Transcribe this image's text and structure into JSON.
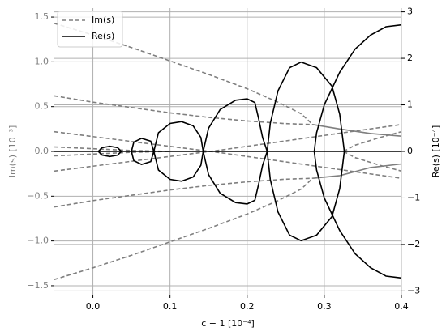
{
  "chart_data": {
    "type": "line",
    "xlabel": "c − 1  [10⁻⁴]",
    "ylabel": "Im(s)  [10⁻³]",
    "y2label": "Re(s)  [10⁻⁴]",
    "xlim": [
      -0.05,
      0.4
    ],
    "xticks": [
      {
        "value": 0,
        "label": "0.0"
      },
      {
        "value": 0.1,
        "label": "0.1"
      },
      {
        "value": 0.2,
        "label": "0.2"
      },
      {
        "value": 0.3,
        "label": "0.3"
      },
      {
        "value": 0.4,
        "label": "0.4"
      }
    ],
    "ylim": [
      -1.6,
      1.6
    ],
    "yticks": [
      {
        "value": -1.5,
        "label": "−1.5"
      },
      {
        "value": -1,
        "label": "−1.0"
      },
      {
        "value": -0.5,
        "label": "−0.5"
      },
      {
        "value": 0,
        "label": "0.0"
      },
      {
        "value": 0.5,
        "label": "0.5"
      },
      {
        "value": 1,
        "label": "1.0"
      },
      {
        "value": 1.5,
        "label": "1.5"
      }
    ],
    "y2lim": [
      -3.08,
      3.08
    ],
    "y2ticks": [
      {
        "value": -3,
        "label": "−3"
      },
      {
        "value": -2,
        "label": "−2"
      },
      {
        "value": -1,
        "label": "−1"
      },
      0,
      1,
      2,
      3
    ],
    "grid": true,
    "legend": "upper left",
    "series": [
      {
        "name": "Im(s)",
        "color": "#7f7f7f",
        "dash": "5,3",
        "axis": "y",
        "curves": [
          {
            "x": [
              -0.05,
              0,
              0.05,
              0.1,
              0.15,
              0.2,
              0.24,
              0.27,
              0.285
            ],
            "values": [
              1.43,
              1.3,
              1.16,
              1.01,
              0.86,
              0.7,
              0.55,
              0.42,
              0.3
            ]
          },
          {
            "x": [
              -0.05,
              0,
              0.05,
              0.1,
              0.15,
              0.2,
              0.25,
              0.285
            ],
            "values": [
              0.62,
              0.55,
              0.49,
              0.43,
              0.38,
              0.34,
              0.31,
              0.3
            ]
          },
          {
            "x": [
              -0.05,
              0,
              0.05,
              0.1,
              0.15,
              0.2,
              0.24,
              0.27,
              0.285
            ],
            "values": [
              -1.43,
              -1.3,
              -1.16,
              -1.01,
              -0.86,
              -0.7,
              -0.55,
              -0.42,
              -0.3
            ]
          },
          {
            "x": [
              -0.05,
              0,
              0.05,
              0.1,
              0.15,
              0.2,
              0.25,
              0.285
            ],
            "values": [
              -0.62,
              -0.55,
              -0.49,
              -0.43,
              -0.38,
              -0.34,
              -0.31,
              -0.3
            ]
          },
          {
            "x": [
              -0.05,
              0.17,
              0.4
            ],
            "values": [
              0.22,
              -0.02,
              -0.3
            ]
          },
          {
            "x": [
              -0.05,
              0.17,
              0.4
            ],
            "values": [
              -0.22,
              0.02,
              0.3
            ]
          },
          {
            "x": [
              -0.05,
              0.05,
              0.1
            ],
            "values": [
              0.05,
              0.01,
              0
            ]
          },
          {
            "x": [
              -0.05,
              0.05,
              0.1
            ],
            "values": [
              -0.05,
              -0.01,
              0
            ]
          },
          {
            "x": [
              0.325,
              0.34,
              0.37,
              0.4
            ],
            "values": [
              0,
              0.07,
              0.15,
              0.22
            ]
          },
          {
            "x": [
              0.325,
              0.34,
              0.37,
              0.4
            ],
            "values": [
              0,
              -0.07,
              -0.15,
              -0.22
            ]
          },
          {
            "solid": true,
            "x": [
              0.285,
              0.32,
              0.36,
              0.4
            ],
            "values": [
              0.3,
              0.25,
              0.2,
              0.17
            ]
          },
          {
            "solid": true,
            "x": [
              0.285,
              0.32,
              0.36,
              0.4
            ],
            "values": [
              -0.3,
              -0.27,
              -0.18,
              -0.14
            ]
          }
        ]
      },
      {
        "name": "Re(s)",
        "color": "#000000",
        "axis": "y2",
        "curves": [
          {
            "x": [
              -0.05,
              0.4
            ],
            "values": [
              0,
              0
            ]
          },
          {
            "x": [
              0.007,
              0.012,
              0.022,
              0.032,
              0.037,
              0.032,
              0.022,
              0.012,
              0.007
            ],
            "values": [
              0,
              0.08,
              0.11,
              0.08,
              0,
              -0.08,
              -0.11,
              -0.08,
              0
            ]
          },
          {
            "x": [
              0.05,
              0.053,
              0.063,
              0.075,
              0.079,
              0.075,
              0.063,
              0.053,
              0.05
            ],
            "values": [
              0,
              0.2,
              0.28,
              0.22,
              0,
              -0.22,
              -0.28,
              -0.2,
              0
            ]
          },
          {
            "x": [
              0.079,
              0.085,
              0.1,
              0.115,
              0.13,
              0.14,
              0.143,
              0.14,
              0.13,
              0.115,
              0.1,
              0.085,
              0.079
            ],
            "values": [
              0,
              0.4,
              0.6,
              0.64,
              0.55,
              0.3,
              0,
              -0.3,
              -0.55,
              -0.64,
              -0.6,
              -0.4,
              0
            ]
          },
          {
            "x": [
              0.143,
              0.15,
              0.165,
              0.185,
              0.2,
              0.21,
              0.215,
              0.22,
              0.226,
              0.22,
              0.215,
              0.21,
              0.2,
              0.185,
              0.165,
              0.15,
              0.143
            ],
            "values": [
              0,
              0.5,
              0.9,
              1.1,
              1.13,
              1.05,
              0.7,
              0.3,
              0,
              -0.3,
              -0.7,
              -1.05,
              -1.13,
              -1.1,
              -0.9,
              -0.5,
              0
            ]
          },
          {
            "x": [
              0.226,
              0.23,
              0.24,
              0.255,
              0.27,
              0.29,
              0.31,
              0.32,
              0.326,
              0.32,
              0.31,
              0.29,
              0.27,
              0.255,
              0.24,
              0.23,
              0.226
            ],
            "values": [
              0,
              0.6,
              1.3,
              1.8,
              1.92,
              1.8,
              1.4,
              0.8,
              0,
              -0.8,
              -1.4,
              -1.8,
              -1.92,
              -1.8,
              -1.3,
              -0.6,
              0
            ]
          },
          {
            "x": [
              0.4,
              0.38,
              0.36,
              0.34,
              0.32,
              0.3,
              0.29,
              0.287,
              0.29,
              0.3,
              0.32,
              0.34,
              0.36,
              0.38,
              0.4
            ],
            "values": [
              -2.72,
              -2.68,
              -2.5,
              -2.2,
              -1.7,
              -1.0,
              -0.4,
              0,
              0.4,
              1.0,
              1.7,
              2.2,
              2.5,
              2.68,
              2.72
            ]
          }
        ]
      }
    ]
  }
}
